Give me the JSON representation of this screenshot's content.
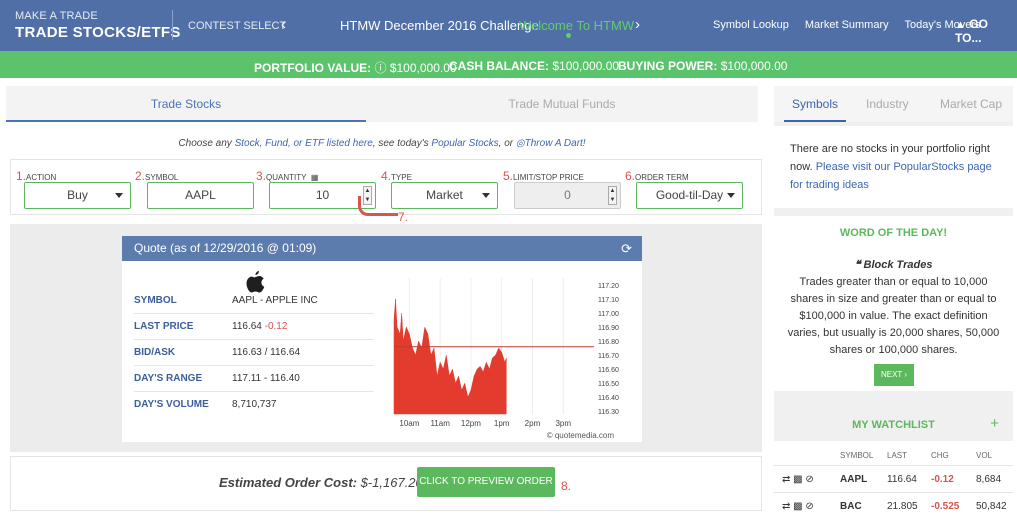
{
  "header": {
    "sub": "MAKE A TRADE",
    "title": "TRADE STOCKS/ETFS",
    "contest_label": "CONTEST SELECT",
    "contest_name": "HTMW December 2016 Challenge",
    "contest_welcome": "Welcome To HTMW",
    "links": [
      "Symbol Lookup",
      "Market Summary",
      "Today's Movers"
    ],
    "goto": "GO TO..."
  },
  "account": {
    "portfolio_label": "PORTFOLIO VALUE:",
    "portfolio_value": "$100,000.00",
    "cash_label": "CASH BALANCE:",
    "cash_value": "$100,000.00",
    "power_label": "BUYING POWER:",
    "power_value": "$100,000.00"
  },
  "tabs": {
    "trade": "Trade Stocks",
    "mutual": "Trade Mutual Funds"
  },
  "subline": {
    "p1": "Choose any ",
    "l1": "Stock, Fund, or ETF listed here",
    "p2": ", see today's ",
    "l2": "Popular Stocks",
    "p3": ", or ",
    "l3": "Throw A Dart!"
  },
  "form": {
    "action": {
      "num": "1.",
      "label": "ACTION",
      "value": "Buy"
    },
    "symbol": {
      "num": "2.",
      "label": "SYMBOL",
      "value": "AAPL"
    },
    "quantity": {
      "num": "3.",
      "label": "QUANTITY",
      "value": "10"
    },
    "type": {
      "num": "4.",
      "label": "TYPE",
      "value": "Market"
    },
    "limit": {
      "num": "5.",
      "label": "LIMIT/STOP PRICE",
      "value": "0"
    },
    "term": {
      "num": "6.",
      "label": "ORDER TERM",
      "value": "Good-til-Day"
    },
    "annot7": "7."
  },
  "quote": {
    "header": "Quote (as of 12/29/2016 @ 01:09)",
    "rows": [
      {
        "k": "SYMBOL",
        "v": "AAPL - APPLE INC",
        "v2": ""
      },
      {
        "k": "LAST PRICE",
        "v": "116.64",
        "v2": "-0.12"
      },
      {
        "k": "BID/ASK",
        "v": "116.63 / 116.64",
        "v2": ""
      },
      {
        "k": "DAY'S RANGE",
        "v": "117.11 - 116.40",
        "v2": ""
      },
      {
        "k": "DAY'S VOLUME",
        "v": "8,710,737",
        "v2": ""
      }
    ],
    "credit": "quotemedia.com"
  },
  "chart_data": {
    "type": "area",
    "title": "",
    "xlabel": "",
    "ylabel": "",
    "x_ticks": [
      "10am",
      "11am",
      "12pm",
      "1pm",
      "2pm",
      "3pm"
    ],
    "y_ticks": [
      117.2,
      117.1,
      117.0,
      116.9,
      116.8,
      116.7,
      116.6,
      116.5,
      116.4,
      116.3
    ],
    "ylim": [
      116.28,
      117.25
    ],
    "reference_line": 116.76,
    "series": [
      {
        "x": [
          9.5,
          9.55,
          9.6,
          9.7,
          9.75,
          9.8,
          9.9,
          10.0,
          10.1,
          10.2,
          10.3,
          10.4,
          10.5,
          10.6,
          10.7,
          10.8,
          10.9,
          11.0,
          11.1,
          11.2,
          11.3,
          11.4,
          11.5,
          11.6,
          11.7,
          11.8,
          11.9,
          12.0,
          12.1,
          12.2,
          12.3,
          12.4,
          12.5,
          12.6,
          12.7,
          12.8,
          12.9,
          13.0,
          13.1,
          13.15
        ],
        "values": [
          116.95,
          117.1,
          116.9,
          116.85,
          117.0,
          116.8,
          116.9,
          116.85,
          116.75,
          116.7,
          116.8,
          116.75,
          116.9,
          116.85,
          116.7,
          116.75,
          116.55,
          116.65,
          116.6,
          116.7,
          116.55,
          116.6,
          116.5,
          116.55,
          116.45,
          116.5,
          116.4,
          116.45,
          116.55,
          116.6,
          116.62,
          116.58,
          116.65,
          116.6,
          116.68,
          116.7,
          116.75,
          116.72,
          116.65,
          116.68
        ]
      }
    ],
    "colors": {
      "fill": "#e33c2f",
      "reference": "#c0392b"
    }
  },
  "order": {
    "est_label": "Estimated Order Cost:",
    "est_value": "$-1,167.20",
    "preview": "CLICK TO PREVIEW ORDER",
    "annot8": "8."
  },
  "right": {
    "tabs": [
      "Symbols",
      "Industry",
      "Market Cap"
    ],
    "empty_text": "There are no stocks in your portfolio right now. ",
    "empty_link": "Please visit our PopularStocks page for trading ideas",
    "wotd_title": "WORD OF THE DAY!",
    "wotd_term": "Block Trades",
    "wotd_def": "Trades greater than or equal to 10,000 shares in size and greater than or equal to $100,000 in value. The exact definition varies, but usually is 20,000 shares, 50,000 shares or 100,000 shares.",
    "next": "NEXT ›",
    "watch_title": "MY WATCHLIST",
    "watch_cols": [
      "SYMBOL",
      "LAST",
      "CHG",
      "VOL"
    ],
    "watch_rows": [
      {
        "sym": "AAPL",
        "last": "116.64",
        "chg": "-0.12",
        "vol": "8,684"
      },
      {
        "sym": "BAC",
        "last": "21.805",
        "chg": "-0.525",
        "vol": "50,842"
      }
    ]
  }
}
